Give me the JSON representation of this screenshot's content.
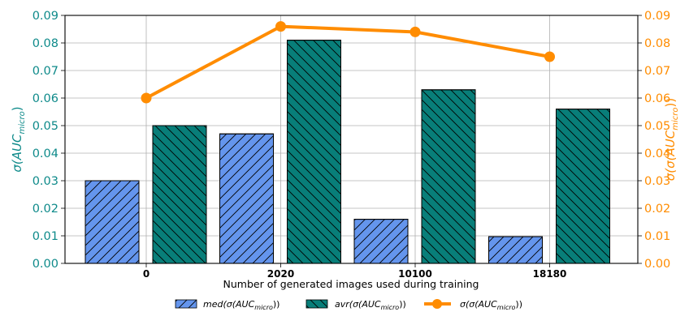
{
  "chart_data": {
    "type": "bar",
    "categories": [
      "0",
      "2020",
      "10100",
      "18180"
    ],
    "xlabel": "Number of generated images used during training",
    "ylabel_left": "σ(AUC",
    "ylabel_left_sub": "micro",
    "ylabel_left_close": ")",
    "ylabel_right": "σ(σ(AUC",
    "ylabel_right_sub": "micro",
    "ylabel_right_close": "))",
    "ylim": [
      0,
      0.09
    ],
    "yticks": [
      "0.00",
      "0.01",
      "0.02",
      "0.03",
      "0.04",
      "0.05",
      "0.06",
      "0.07",
      "0.08",
      "0.09"
    ],
    "grid": true,
    "legend_position": "bottom",
    "series": [
      {
        "name": "med(σ(AUC",
        "name_sub": "micro",
        "name_close": "))",
        "kind": "bar",
        "hatch": "forward",
        "color": "#6495ED",
        "values": [
          0.03,
          0.047,
          0.016,
          0.0097
        ]
      },
      {
        "name": "avr(σ(AUC",
        "name_sub": "micro",
        "name_close": "))",
        "kind": "bar",
        "hatch": "backward",
        "color": "#087E79",
        "values": [
          0.05,
          0.081,
          0.063,
          0.056
        ]
      },
      {
        "name": "σ(σ(AUC",
        "name_sub": "micro",
        "name_close": "))",
        "kind": "line",
        "axis": "right",
        "color": "#FF8C00",
        "values": [
          0.06,
          0.086,
          0.084,
          0.075
        ]
      }
    ],
    "colors": {
      "left_axis": "#0E8A8A",
      "right_axis": "#FF8C00"
    }
  }
}
